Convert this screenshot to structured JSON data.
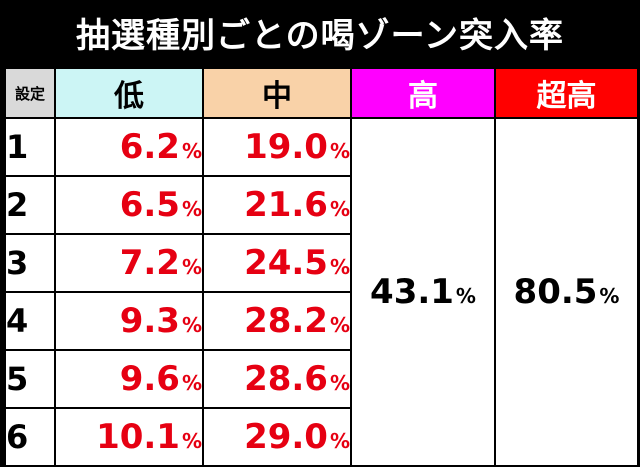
{
  "title": "抽選種別ごとの喝ゾーン突入率",
  "headers": {
    "setting": "設定",
    "low": "低",
    "mid": "中",
    "high": "高",
    "super_high": "超高"
  },
  "unit": "%",
  "rows": [
    {
      "setting": "1",
      "low": "6.2",
      "mid": "19.0"
    },
    {
      "setting": "2",
      "low": "6.5",
      "mid": "21.6"
    },
    {
      "setting": "3",
      "low": "7.2",
      "mid": "24.5"
    },
    {
      "setting": "4",
      "low": "9.3",
      "mid": "28.2"
    },
    {
      "setting": "5",
      "low": "9.6",
      "mid": "28.6"
    },
    {
      "setting": "6",
      "low": "10.1",
      "mid": "29.0"
    }
  ],
  "high_rate": "43.1",
  "super_high_rate": "80.5",
  "colors": {
    "background": "#000000",
    "low_header": "#ccf5f5",
    "mid_header": "#f9d2a8",
    "high_header": "#ff00ff",
    "super_high_header": "#ff0000",
    "rate_text": "#e60012"
  }
}
